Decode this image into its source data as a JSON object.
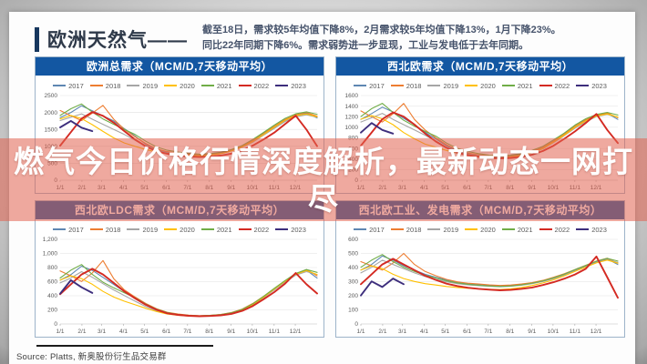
{
  "header": {
    "title": "欧洲天然气——",
    "summary_lines": [
      "截至18日，需求较5年均值下降8%，2月需求较5年均值下降13%，1月下降23%。",
      "同比22年同期下降6%。需求弱势进一步显现，工业与发电低于去年同期。"
    ]
  },
  "overlay": {
    "lines": [
      "燃气今日价格行情深度解析，最新动态一网打",
      "尽"
    ],
    "band_color": "rgba(226,98,80,0.55)"
  },
  "footer": {
    "source": "Source: Platts, 新奥股份衍生品交易群"
  },
  "colors": {
    "title_bar_blue": "#1357a2",
    "header_accent_blue": "#17375e",
    "panel_border": "#9db4ca"
  },
  "chart_data": [
    {
      "type": "line",
      "title": "欧洲总需求（MCM/D,7天移动平均）",
      "ylim": [
        0,
        2500
      ],
      "y_tick_labels": [
        "0",
        "500",
        "1000",
        "1500",
        "2000",
        "2500"
      ],
      "x_tick_labels": [
        "1/1",
        "2/1",
        "3/1",
        "4/1",
        "5/1",
        "6/1",
        "7/1",
        "8/1",
        "9/1",
        "10/1",
        "11/1",
        "12/1"
      ],
      "grid": true,
      "legend_position": "top",
      "series": [
        {
          "name": "2017",
          "color": "#5e87b2",
          "width": 1.1,
          "values": [
            1850,
            2000,
            2200,
            2050,
            1900,
            1750,
            1520,
            1300,
            1060,
            900,
            820,
            780,
            750,
            730,
            750,
            800,
            880,
            990,
            1150,
            1360,
            1560,
            1760,
            1900,
            1980,
            1840
          ]
        },
        {
          "name": "2018",
          "color": "#ed7d31",
          "width": 1.1,
          "values": [
            2060,
            1900,
            1760,
            1980,
            2210,
            1800,
            1500,
            1280,
            1080,
            920,
            845,
            800,
            770,
            750,
            765,
            805,
            885,
            1005,
            1180,
            1390,
            1590,
            1790,
            1930,
            2000,
            1890
          ]
        },
        {
          "name": "2019",
          "color": "#a6a6a6",
          "width": 1.1,
          "values": [
            1760,
            1860,
            1960,
            1800,
            1650,
            1500,
            1350,
            1180,
            1000,
            880,
            805,
            770,
            740,
            725,
            745,
            785,
            865,
            975,
            1125,
            1330,
            1530,
            1730,
            1870,
            1930,
            1860
          ]
        },
        {
          "name": "2020",
          "color": "#ffc000",
          "width": 1.1,
          "values": [
            1810,
            1910,
            1820,
            1640,
            1440,
            1250,
            1100,
            1000,
            905,
            830,
            780,
            750,
            730,
            720,
            742,
            782,
            862,
            985,
            1145,
            1350,
            1565,
            1765,
            1905,
            1955,
            1875
          ]
        },
        {
          "name": "2021",
          "color": "#70ad47",
          "width": 1.1,
          "values": [
            1910,
            2110,
            2250,
            2010,
            1810,
            1650,
            1500,
            1350,
            1150,
            980,
            885,
            830,
            790,
            770,
            785,
            825,
            905,
            1025,
            1205,
            1410,
            1625,
            1825,
            1960,
            2020,
            1945
          ]
        },
        {
          "name": "2022",
          "color": "#d42a22",
          "width": 1.9,
          "values": [
            1020,
            1420,
            1820,
            2010,
            1900,
            1700,
            1450,
            1200,
            1000,
            855,
            780,
            730,
            700,
            682,
            695,
            725,
            785,
            885,
            1025,
            1205,
            1405,
            1655,
            1905,
            1495,
            1005
          ]
        },
        {
          "name": "2023",
          "color": "#3d2e7c",
          "width": 1.9,
          "values": [
            1560,
            1750,
            1550,
            1450
          ]
        }
      ]
    },
    {
      "type": "line",
      "title": "西北欧需求（MCM/D,7天移动平均）",
      "ylim": [
        0,
        1600
      ],
      "y_tick_labels": [
        "0",
        "200",
        "400",
        "600",
        "800",
        "1000",
        "1200",
        "1400",
        "1600"
      ],
      "x_tick_labels": [
        "1/1",
        "2/1",
        "3/1",
        "4/1",
        "5/1",
        "6/1",
        "7/1",
        "8/1",
        "9/1",
        "10/1",
        "11/1",
        "12/1"
      ],
      "grid": true,
      "legend_position": "top",
      "series": [
        {
          "name": "2017",
          "color": "#5e87b2",
          "width": 1.1,
          "values": [
            1150,
            1260,
            1380,
            1290,
            1170,
            1050,
            905,
            780,
            650,
            560,
            500,
            470,
            452,
            442,
            452,
            482,
            532,
            602,
            722,
            852,
            1002,
            1122,
            1222,
            1262,
            1150
          ]
        },
        {
          "name": "2018",
          "color": "#ed7d31",
          "width": 1.1,
          "values": [
            1310,
            1200,
            1100,
            1255,
            1450,
            1150,
            950,
            800,
            670,
            572,
            512,
            482,
            462,
            452,
            462,
            492,
            542,
            622,
            742,
            872,
            1022,
            1142,
            1232,
            1272,
            1180
          ]
        },
        {
          "name": "2019",
          "color": "#a6a6a6",
          "width": 1.1,
          "values": [
            1100,
            1180,
            1262,
            1150,
            1050,
            950,
            850,
            740,
            622,
            542,
            490,
            462,
            442,
            432,
            442,
            472,
            522,
            592,
            712,
            842,
            982,
            1102,
            1202,
            1242,
            1192
          ]
        },
        {
          "name": "2020",
          "color": "#ffc000",
          "width": 1.1,
          "values": [
            1152,
            1222,
            1162,
            1050,
            900,
            782,
            682,
            622,
            562,
            512,
            472,
            450,
            432,
            422,
            440,
            470,
            520,
            600,
            722,
            852,
            1002,
            1122,
            1212,
            1252,
            1192
          ]
        },
        {
          "name": "2021",
          "color": "#70ad47",
          "width": 1.1,
          "values": [
            1202,
            1352,
            1452,
            1282,
            1132,
            1022,
            922,
            832,
            702,
            602,
            542,
            502,
            472,
            462,
            472,
            502,
            562,
            642,
            762,
            892,
            1042,
            1162,
            1242,
            1282,
            1232
          ]
        },
        {
          "name": "2022",
          "color": "#d42a22",
          "width": 1.9,
          "values": [
            652,
            902,
            1152,
            1282,
            1202,
            1052,
            882,
            732,
            612,
            522,
            472,
            442,
            422,
            412,
            422,
            442,
            482,
            552,
            652,
            782,
            922,
            1082,
            1252,
            952,
            702
          ]
        },
        {
          "name": "2023",
          "color": "#3d2e7c",
          "width": 1.9,
          "values": [
            900,
            1080,
            950,
            880
          ]
        }
      ]
    },
    {
      "type": "line",
      "title": "西北欧LDC需求（MCM/D,7天移动平均）",
      "ylim": [
        0,
        1200
      ],
      "y_tick_labels": [
        "0",
        "200",
        "400",
        "600",
        "800",
        "1,000",
        "1,200"
      ],
      "x_tick_labels": [
        "1/1",
        "2/1",
        "3/1",
        "4/1",
        "5/1",
        "6/1",
        "7/1",
        "8/1",
        "9/1",
        "10/1",
        "11/1",
        "12/1"
      ],
      "grid": true,
      "legend_position": "top",
      "series": [
        {
          "name": "2017",
          "color": "#5e87b2",
          "width": 1.1,
          "values": [
            620,
            700,
            820,
            760,
            660,
            560,
            460,
            370,
            280,
            210,
            160,
            135,
            120,
            115,
            120,
            132,
            156,
            202,
            282,
            382,
            492,
            602,
            702,
            762,
            650
          ]
        },
        {
          "name": "2018",
          "color": "#ed7d31",
          "width": 1.1,
          "values": [
            752,
            682,
            602,
            722,
            900,
            642,
            482,
            382,
            290,
            215,
            165,
            140,
            125,
            118,
            122,
            136,
            162,
            212,
            292,
            392,
            502,
            612,
            712,
            772,
            682
          ]
        },
        {
          "name": "2019",
          "color": "#a6a6a6",
          "width": 1.1,
          "values": [
            582,
            652,
            742,
            662,
            572,
            482,
            402,
            322,
            246,
            186,
            146,
            126,
            115,
            110,
            116,
            128,
            152,
            196,
            272,
            372,
            482,
            592,
            692,
            742,
            702
          ]
        },
        {
          "name": "2020",
          "color": "#ffc000",
          "width": 1.1,
          "values": [
            622,
            682,
            642,
            562,
            462,
            382,
            322,
            272,
            222,
            176,
            140,
            122,
            112,
            108,
            114,
            127,
            151,
            199,
            276,
            381,
            496,
            606,
            706,
            756,
            702
          ]
        },
        {
          "name": "2021",
          "color": "#70ad47",
          "width": 1.1,
          "values": [
            652,
            762,
            842,
            702,
            592,
            512,
            442,
            372,
            282,
            212,
            162,
            136,
            121,
            116,
            121,
            133,
            159,
            206,
            286,
            391,
            506,
            616,
            716,
            772,
            732
          ]
        },
        {
          "name": "2022",
          "color": "#d42a22",
          "width": 1.9,
          "values": [
            422,
            562,
            702,
            782,
            702,
            582,
            462,
            362,
            272,
            201,
            151,
            129,
            116,
            110,
            113,
            123,
            143,
            186,
            256,
            351,
            451,
            572,
            722,
            562,
            432
          ]
        },
        {
          "name": "2023",
          "color": "#3d2e7c",
          "width": 1.9,
          "values": [
            430,
            620,
            520,
            440
          ]
        }
      ]
    },
    {
      "type": "line",
      "title": "西北欧工业、发电需求（MCM/D,7天移动平均）",
      "ylim": [
        0,
        600
      ],
      "y_tick_labels": [
        "0",
        "100",
        "200",
        "300",
        "400",
        "500",
        "600"
      ],
      "x_tick_labels": [
        "1/1",
        "2/1",
        "3/1",
        "4/1",
        "5/1",
        "6/1",
        "7/1",
        "8/1",
        "9/1",
        "10/1",
        "11/1",
        "12/1"
      ],
      "grid": true,
      "legend_position": "top",
      "series": [
        {
          "name": "2017",
          "color": "#5e87b2",
          "width": 1.1,
          "values": [
            382,
            422,
            482,
            452,
            412,
            382,
            352,
            330,
            312,
            296,
            286,
            280,
            275,
            271,
            273,
            281,
            291,
            306,
            326,
            351,
            381,
            411,
            441,
            461,
            421
          ]
        },
        {
          "name": "2018",
          "color": "#ed7d31",
          "width": 1.1,
          "values": [
            442,
            412,
            382,
            432,
            500,
            422,
            372,
            342,
            316,
            299,
            289,
            283,
            277,
            273,
            276,
            283,
            293,
            309,
            331,
            356,
            386,
            416,
            446,
            466,
            431
          ]
        },
        {
          "name": "2019",
          "color": "#a6a6a6",
          "width": 1.1,
          "values": [
            362,
            402,
            452,
            422,
            392,
            362,
            336,
            316,
            299,
            286,
            277,
            271,
            267,
            264,
            267,
            275,
            286,
            301,
            321,
            346,
            376,
            406,
            436,
            456,
            436
          ]
        },
        {
          "name": "2020",
          "color": "#ffc000",
          "width": 1.1,
          "values": [
            382,
            412,
            392,
            352,
            322,
            301,
            286,
            276,
            266,
            259,
            253,
            249,
            246,
            244,
            249,
            259,
            273,
            291,
            313,
            341,
            373,
            403,
            433,
            453,
            431
          ]
        },
        {
          "name": "2021",
          "color": "#70ad47",
          "width": 1.1,
          "values": [
            402,
            452,
            492,
            442,
            402,
            372,
            346,
            326,
            306,
            291,
            281,
            275,
            269,
            266,
            269,
            277,
            289,
            305,
            327,
            353,
            385,
            415,
            445,
            465,
            446
          ]
        },
        {
          "name": "2022",
          "color": "#d42a22",
          "width": 1.9,
          "values": [
            282,
            352,
            422,
            462,
            422,
            382,
            342,
            312,
            286,
            269,
            257,
            249,
            243,
            239,
            241,
            249,
            259,
            276,
            296,
            321,
            351,
            391,
            478,
            332,
            186
          ]
        },
        {
          "name": "2023",
          "color": "#3d2e7c",
          "width": 1.9,
          "values": [
            202,
            302,
            262,
            322,
            282
          ]
        }
      ]
    }
  ]
}
